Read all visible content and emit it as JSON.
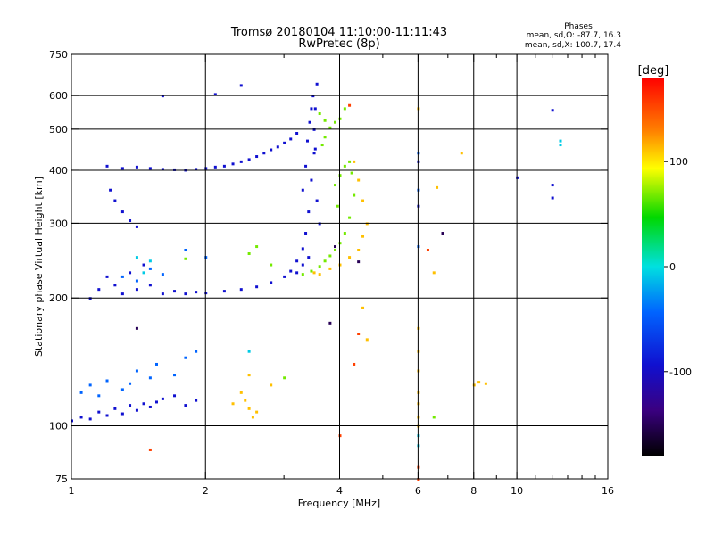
{
  "chart_data": {
    "type": "scatter",
    "title": "Tromsø 20180104 11:10:00-11:11:43",
    "subtitle": "RwPretec (8p)",
    "stats": {
      "header": "Phases",
      "line_o": "mean, sd,O: -87.7, 16.3",
      "line_x": "mean, sd,X: 100.7, 17.4"
    },
    "xlabel": "Frequency [MHz]",
    "ylabel": "Stationary phase Virtual Height [km]",
    "x_scale": "log",
    "y_scale": "log",
    "xlim": [
      1,
      16
    ],
    "ylim": [
      75,
      750
    ],
    "xticks": [
      1,
      2,
      4,
      6,
      8,
      10,
      16
    ],
    "xminor": [
      3,
      5,
      7,
      9,
      11,
      12,
      13,
      14,
      15
    ],
    "yticks": [
      75,
      100,
      200,
      300,
      400,
      500,
      600,
      750
    ],
    "grid_x": [
      2,
      4,
      6,
      8,
      10
    ],
    "grid_y": [
      100,
      200,
      300,
      400,
      500,
      600
    ],
    "colorbar": {
      "label": "[deg]",
      "range": [
        -180,
        180
      ],
      "ticks": [
        100,
        0,
        -100
      ]
    },
    "series": [
      {
        "phase": -100,
        "points": [
          [
            1.0,
            103
          ],
          [
            1.05,
            105
          ],
          [
            1.1,
            104
          ],
          [
            1.15,
            108
          ],
          [
            1.2,
            106
          ],
          [
            1.25,
            110
          ],
          [
            1.3,
            107
          ],
          [
            1.35,
            112
          ],
          [
            1.4,
            109
          ],
          [
            1.45,
            113
          ],
          [
            1.5,
            111
          ],
          [
            1.55,
            114
          ],
          [
            1.6,
            116
          ],
          [
            1.7,
            118
          ],
          [
            1.8,
            112
          ],
          [
            1.9,
            115
          ],
          [
            1.1,
            200
          ],
          [
            1.15,
            210
          ],
          [
            1.2,
            225
          ],
          [
            1.25,
            215
          ],
          [
            1.3,
            205
          ],
          [
            1.35,
            230
          ],
          [
            1.4,
            210
          ],
          [
            1.45,
            240
          ],
          [
            1.5,
            215
          ],
          [
            1.6,
            205
          ],
          [
            1.7,
            208
          ],
          [
            1.8,
            205
          ],
          [
            1.9,
            207
          ],
          [
            2.0,
            206
          ],
          [
            2.2,
            208
          ],
          [
            2.4,
            210
          ],
          [
            2.6,
            213
          ],
          [
            2.8,
            218
          ],
          [
            3.0,
            225
          ],
          [
            3.1,
            232
          ],
          [
            3.2,
            245
          ],
          [
            3.3,
            262
          ],
          [
            3.35,
            285
          ],
          [
            3.4,
            320
          ],
          [
            3.45,
            380
          ],
          [
            3.5,
            440
          ],
          [
            3.5,
            500
          ],
          [
            3.52,
            560
          ],
          [
            3.55,
            640
          ],
          [
            1.2,
            410
          ],
          [
            1.3,
            405
          ],
          [
            1.4,
            408
          ],
          [
            1.5,
            405
          ],
          [
            1.6,
            403
          ],
          [
            1.7,
            402
          ],
          [
            1.8,
            401
          ],
          [
            1.9,
            403
          ],
          [
            2.0,
            405
          ],
          [
            2.1,
            408
          ],
          [
            2.2,
            410
          ],
          [
            2.3,
            415
          ],
          [
            2.4,
            420
          ],
          [
            2.5,
            425
          ],
          [
            2.6,
            432
          ],
          [
            2.7,
            440
          ],
          [
            2.8,
            448
          ],
          [
            2.9,
            455
          ],
          [
            3.0,
            465
          ],
          [
            3.1,
            475
          ],
          [
            3.2,
            490
          ],
          [
            1.22,
            360
          ],
          [
            1.25,
            340
          ],
          [
            1.3,
            320
          ],
          [
            1.35,
            305
          ],
          [
            1.4,
            295
          ],
          [
            1.6,
            600
          ],
          [
            2.1,
            605
          ],
          [
            2.4,
            635
          ],
          [
            3.3,
            360
          ],
          [
            3.35,
            410
          ],
          [
            3.38,
            470
          ],
          [
            3.42,
            520
          ],
          [
            3.45,
            560
          ],
          [
            3.48,
            600
          ],
          [
            3.52,
            450
          ],
          [
            3.55,
            340
          ],
          [
            3.6,
            300
          ],
          [
            3.4,
            250
          ],
          [
            3.3,
            240
          ],
          [
            3.2,
            230
          ],
          [
            12,
            555
          ],
          [
            12,
            370
          ],
          [
            12,
            345
          ],
          [
            10,
            385
          ],
          [
            6.0,
            330
          ],
          [
            6.0,
            420
          ]
        ]
      },
      {
        "phase": -60,
        "points": [
          [
            1.05,
            120
          ],
          [
            1.1,
            125
          ],
          [
            1.15,
            118
          ],
          [
            1.2,
            128
          ],
          [
            1.3,
            122
          ],
          [
            1.35,
            126
          ],
          [
            1.4,
            135
          ],
          [
            1.5,
            130
          ],
          [
            1.55,
            140
          ],
          [
            1.7,
            132
          ],
          [
            1.8,
            145
          ],
          [
            1.9,
            150
          ],
          [
            1.3,
            225
          ],
          [
            1.4,
            220
          ],
          [
            1.5,
            235
          ],
          [
            1.6,
            228
          ],
          [
            1.8,
            260
          ],
          [
            2.0,
            250
          ],
          [
            6.0,
            440
          ],
          [
            6.0,
            360
          ],
          [
            6.0,
            265
          ]
        ]
      },
      {
        "phase": -10,
        "points": [
          [
            1.4,
            250
          ],
          [
            1.45,
            230
          ],
          [
            1.5,
            245
          ],
          [
            2.5,
            150
          ],
          [
            6.0,
            90
          ],
          [
            6.0,
            95
          ],
          [
            12.5,
            460
          ],
          [
            12.5,
            470
          ]
        ]
      },
      {
        "phase": 70,
        "points": [
          [
            3.6,
            545
          ],
          [
            3.7,
            525
          ],
          [
            3.8,
            505
          ],
          [
            3.9,
            520
          ],
          [
            4.0,
            530
          ],
          [
            4.1,
            560
          ],
          [
            3.65,
            460
          ],
          [
            3.7,
            480
          ],
          [
            3.3,
            228
          ],
          [
            3.45,
            232
          ],
          [
            3.6,
            238
          ],
          [
            3.7,
            245
          ],
          [
            3.8,
            252
          ],
          [
            3.9,
            260
          ],
          [
            4.0,
            270
          ],
          [
            4.1,
            285
          ],
          [
            4.2,
            310
          ],
          [
            4.3,
            350
          ],
          [
            4.25,
            395
          ],
          [
            4.2,
            420
          ],
          [
            4.1,
            410
          ],
          [
            4.0,
            390
          ],
          [
            3.9,
            370
          ],
          [
            3.95,
            330
          ],
          [
            2.6,
            265
          ],
          [
            2.5,
            255
          ],
          [
            2.8,
            240
          ],
          [
            1.8,
            248
          ],
          [
            3.0,
            130
          ],
          [
            6.5,
            105
          ]
        ]
      },
      {
        "phase": 120,
        "points": [
          [
            3.5,
            230
          ],
          [
            3.6,
            228
          ],
          [
            3.8,
            235
          ],
          [
            4.0,
            240
          ],
          [
            4.2,
            250
          ],
          [
            4.4,
            260
          ],
          [
            4.5,
            280
          ],
          [
            4.6,
            300
          ],
          [
            4.5,
            340
          ],
          [
            4.4,
            380
          ],
          [
            4.3,
            420
          ],
          [
            2.4,
            120
          ],
          [
            2.45,
            115
          ],
          [
            2.5,
            110
          ],
          [
            2.55,
            105
          ],
          [
            2.6,
            108
          ],
          [
            2.3,
            113
          ],
          [
            2.5,
            132
          ],
          [
            2.8,
            125
          ],
          [
            6.0,
            170
          ],
          [
            6.0,
            150
          ],
          [
            6.0,
            135
          ],
          [
            6.0,
            120
          ],
          [
            6.0,
            113
          ],
          [
            6.0,
            105
          ],
          [
            6.0,
            100
          ],
          [
            6.0,
            560
          ],
          [
            8.0,
            125
          ],
          [
            8.2,
            127
          ],
          [
            8.5,
            126
          ],
          [
            7.5,
            440
          ],
          [
            6.5,
            230
          ],
          [
            6.6,
            365
          ],
          [
            4.5,
            190
          ],
          [
            4.6,
            160
          ]
        ]
      },
      {
        "phase": 160,
        "points": [
          [
            4.2,
            570
          ],
          [
            4.0,
            95
          ],
          [
            4.3,
            140
          ],
          [
            4.4,
            165
          ],
          [
            1.5,
            88
          ],
          [
            6.0,
            75
          ],
          [
            6.0,
            80
          ],
          [
            6.3,
            260
          ]
        ]
      },
      {
        "phase": -150,
        "points": [
          [
            3.8,
            175
          ],
          [
            3.9,
            265
          ],
          [
            4.4,
            244
          ],
          [
            6.8,
            285
          ],
          [
            1.4,
            170
          ]
        ]
      }
    ]
  }
}
